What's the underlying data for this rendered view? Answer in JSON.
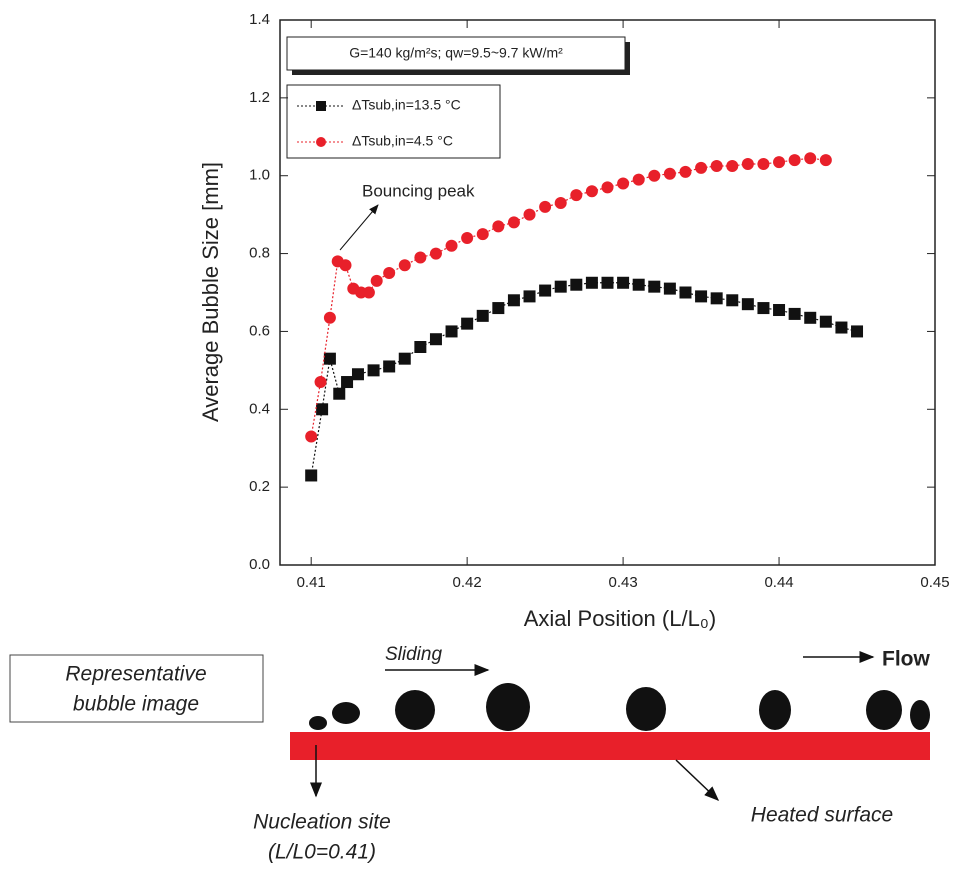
{
  "chart_data": {
    "type": "line",
    "xlabel": "Axial Position (L/L₀)",
    "ylabel": "Average Bubble Size [mm]",
    "subtitle": "G=140 kg/m²s; qw=9.5~9.7 kW/m²",
    "annotation": "Bouncing peak",
    "xlim": [
      0.408,
      0.45
    ],
    "xticks": [
      0.41,
      0.42,
      0.43,
      0.44,
      0.45
    ],
    "ylim": [
      0,
      1.4
    ],
    "yticks": [
      {
        "value": 0,
        "label": "0.0"
      },
      0.2,
      0.4,
      0.6,
      0.8,
      {
        "value": 1,
        "label": "1.0"
      },
      1.2,
      1.4
    ],
    "series": [
      {
        "name": "ΔTsub,in=13.5 °C",
        "color": "#111111",
        "marker": "square",
        "x": [
          0.41,
          0.4107,
          0.4112,
          0.4118,
          0.4123,
          0.413,
          0.414,
          0.415,
          0.416,
          0.417,
          0.418,
          0.419,
          0.42,
          0.421,
          0.422,
          0.423,
          0.424,
          0.425,
          0.426,
          0.427,
          0.428,
          0.429,
          0.43,
          0.431,
          0.432,
          0.433,
          0.434,
          0.435,
          0.436,
          0.437,
          0.438,
          0.439,
          0.44,
          0.441,
          0.442,
          0.443,
          0.444,
          0.445
        ],
        "values": [
          0.23,
          0.4,
          0.53,
          0.44,
          0.47,
          0.49,
          0.5,
          0.51,
          0.53,
          0.56,
          0.58,
          0.6,
          0.62,
          0.64,
          0.66,
          0.68,
          0.69,
          0.705,
          0.715,
          0.72,
          0.725,
          0.725,
          0.725,
          0.72,
          0.715,
          0.71,
          0.7,
          0.69,
          0.685,
          0.68,
          0.67,
          0.66,
          0.655,
          0.645,
          0.635,
          0.625,
          0.61,
          0.6
        ]
      },
      {
        "name": "ΔTsub,in=4.5 °C",
        "color": "#e8202a",
        "marker": "circle",
        "x": [
          0.41,
          0.4106,
          0.4112,
          0.4117,
          0.4122,
          0.4127,
          0.4132,
          0.4137,
          0.4142,
          0.415,
          0.416,
          0.417,
          0.418,
          0.419,
          0.42,
          0.421,
          0.422,
          0.423,
          0.424,
          0.425,
          0.426,
          0.427,
          0.428,
          0.429,
          0.43,
          0.431,
          0.432,
          0.433,
          0.434,
          0.435,
          0.436,
          0.437,
          0.438,
          0.439,
          0.44,
          0.441,
          0.442,
          0.443
        ],
        "values": [
          0.33,
          0.47,
          0.635,
          0.78,
          0.77,
          0.71,
          0.7,
          0.7,
          0.73,
          0.75,
          0.77,
          0.79,
          0.8,
          0.82,
          0.84,
          0.85,
          0.87,
          0.88,
          0.9,
          0.92,
          0.93,
          0.95,
          0.96,
          0.97,
          0.98,
          0.99,
          1.0,
          1.005,
          1.01,
          1.02,
          1.025,
          1.025,
          1.03,
          1.03,
          1.035,
          1.04,
          1.045,
          1.04
        ]
      }
    ]
  },
  "diagram": {
    "caption": [
      "Representative",
      "bubble image"
    ],
    "sliding": "Sliding",
    "flow": "Flow",
    "nucleation": [
      "Nucleation site",
      "(L/L0=0.41)"
    ],
    "heated": "Heated surface"
  }
}
